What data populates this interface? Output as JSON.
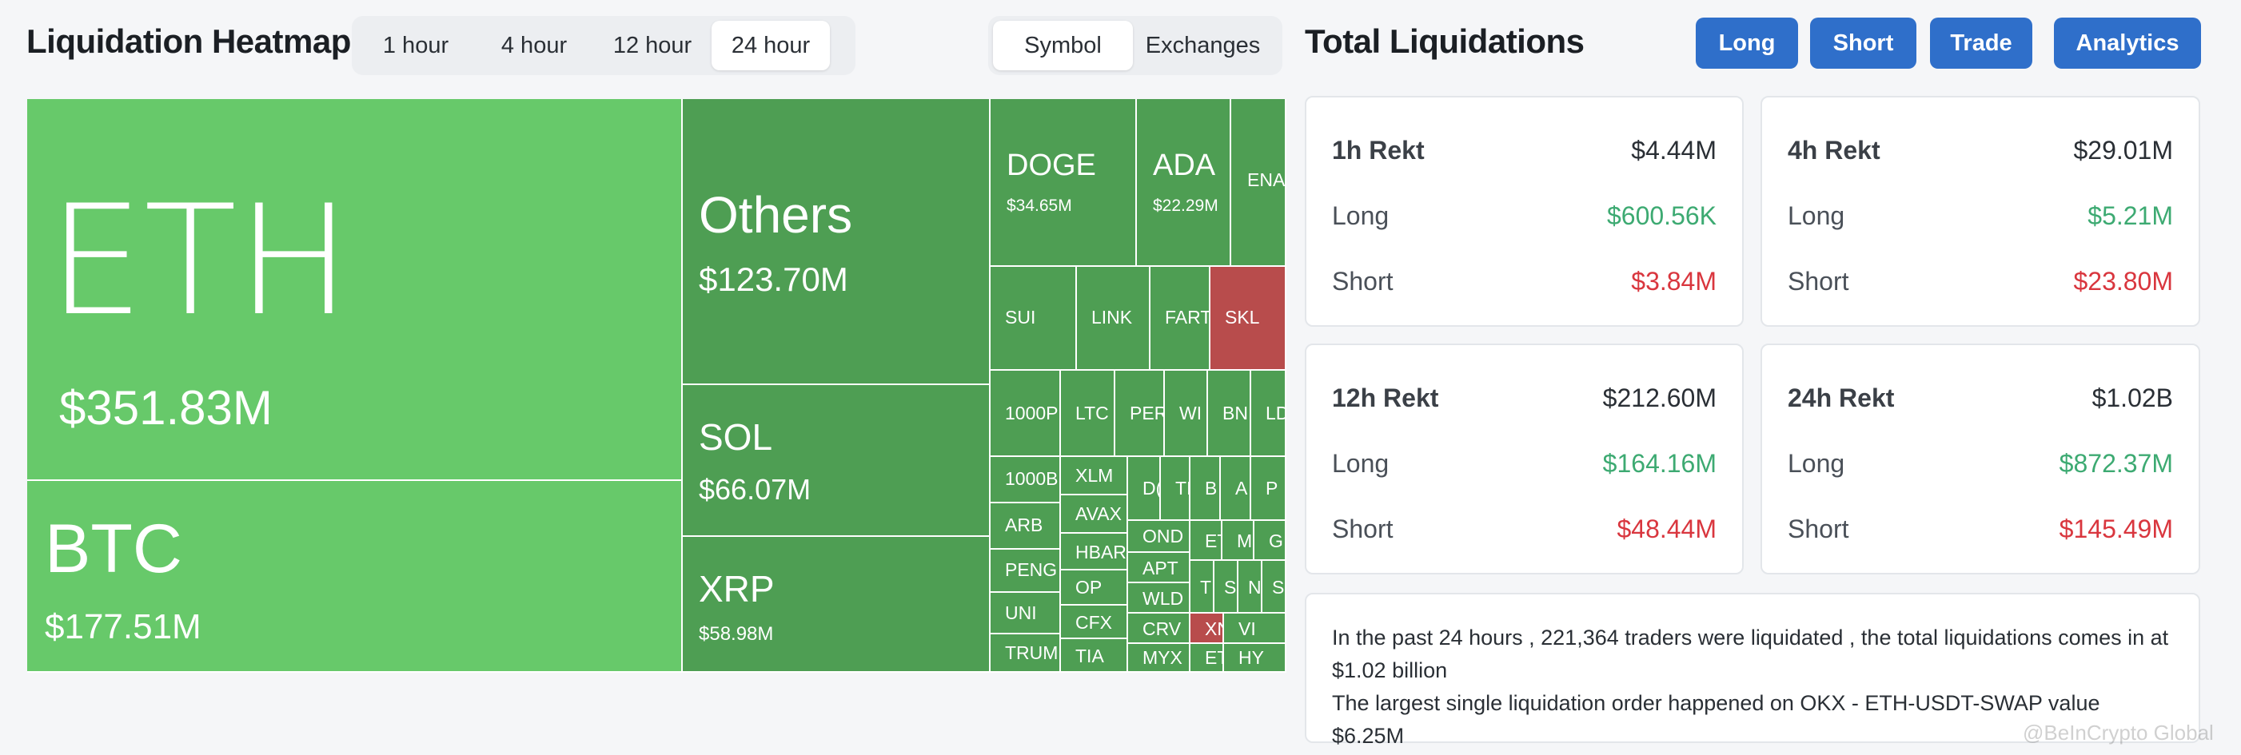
{
  "heatmap": {
    "title": "Liquidation Heatmap",
    "time_tabs": [
      "1 hour",
      "4 hour",
      "12 hour",
      "24 hour"
    ],
    "active_time_tab": "24 hour",
    "view_tabs": [
      "Symbol",
      "Exchanges"
    ],
    "active_view_tab": "Symbol",
    "tiles": [
      {
        "symbol": "ETH",
        "value": "$351.83M"
      },
      {
        "symbol": "BTC",
        "value": "$177.51M"
      },
      {
        "symbol": "Others",
        "value": "$123.70M"
      },
      {
        "symbol": "SOL",
        "value": "$66.07M"
      },
      {
        "symbol": "XRP",
        "value": "$58.98M"
      },
      {
        "symbol": "DOGE",
        "value": "$34.65M"
      },
      {
        "symbol": "ADA",
        "value": "$22.29M"
      },
      {
        "symbol": "ENA"
      },
      {
        "symbol": "SUI"
      },
      {
        "symbol": "LINK"
      },
      {
        "symbol": "FARTC"
      },
      {
        "symbol": "SKL"
      },
      {
        "symbol": "1000P"
      },
      {
        "symbol": "LTC"
      },
      {
        "symbol": "PER"
      },
      {
        "symbol": "WI"
      },
      {
        "symbol": "BN"
      },
      {
        "symbol": "LD"
      },
      {
        "symbol": "1000B"
      },
      {
        "symbol": "XLM"
      },
      {
        "symbol": "D("
      },
      {
        "symbol": "TI"
      },
      {
        "symbol": "B"
      },
      {
        "symbol": "A"
      },
      {
        "symbol": "P"
      },
      {
        "symbol": "ARB"
      },
      {
        "symbol": "AVAX"
      },
      {
        "symbol": "OND"
      },
      {
        "symbol": "ET"
      },
      {
        "symbol": "M"
      },
      {
        "symbol": "G"
      },
      {
        "symbol": "PENG"
      },
      {
        "symbol": "HBAR"
      },
      {
        "symbol": "APT"
      },
      {
        "symbol": "OP"
      },
      {
        "symbol": "WLD"
      },
      {
        "symbol": "T"
      },
      {
        "symbol": "S"
      },
      {
        "symbol": "N"
      },
      {
        "symbol": "S"
      },
      {
        "symbol": "UNI"
      },
      {
        "symbol": "CFX"
      },
      {
        "symbol": "CRV"
      },
      {
        "symbol": "XN"
      },
      {
        "symbol": "VI"
      },
      {
        "symbol": "TRUM"
      },
      {
        "symbol": "TIA"
      },
      {
        "symbol": "MYX"
      },
      {
        "symbol": "ET"
      },
      {
        "symbol": "HY"
      }
    ]
  },
  "liquidations": {
    "title": "Total Liquidations",
    "buttons": [
      "Long",
      "Short",
      "Trade",
      "Analytics"
    ],
    "cards": [
      {
        "label": "1h Rekt",
        "total": "$4.44M",
        "long_label": "Long",
        "long": "$600.56K",
        "short_label": "Short",
        "short": "$3.84M"
      },
      {
        "label": "4h Rekt",
        "total": "$29.01M",
        "long_label": "Long",
        "long": "$5.21M",
        "short_label": "Short",
        "short": "$23.80M"
      },
      {
        "label": "12h Rekt",
        "total": "$212.60M",
        "long_label": "Long",
        "long": "$164.16M",
        "short_label": "Short",
        "short": "$48.44M"
      },
      {
        "label": "24h Rekt",
        "total": "$1.02B",
        "long_label": "Long",
        "long": "$872.37M",
        "short_label": "Short",
        "short": "$145.49M"
      }
    ],
    "summary_line1": "In the past 24 hours , 221,364 traders were liquidated , the total liquidations comes in at $1.02 billion",
    "summary_line2": "The largest single liquidation order happened on OKX - ETH-USDT-SWAP value $6.25M"
  },
  "watermark": "@BeInCrypto Global",
  "colors": {
    "long": "#3daa72",
    "short": "#d9363e",
    "accent": "#2f6fca",
    "tile_green": "#67c96a",
    "tile_red": "#b84c4c"
  }
}
